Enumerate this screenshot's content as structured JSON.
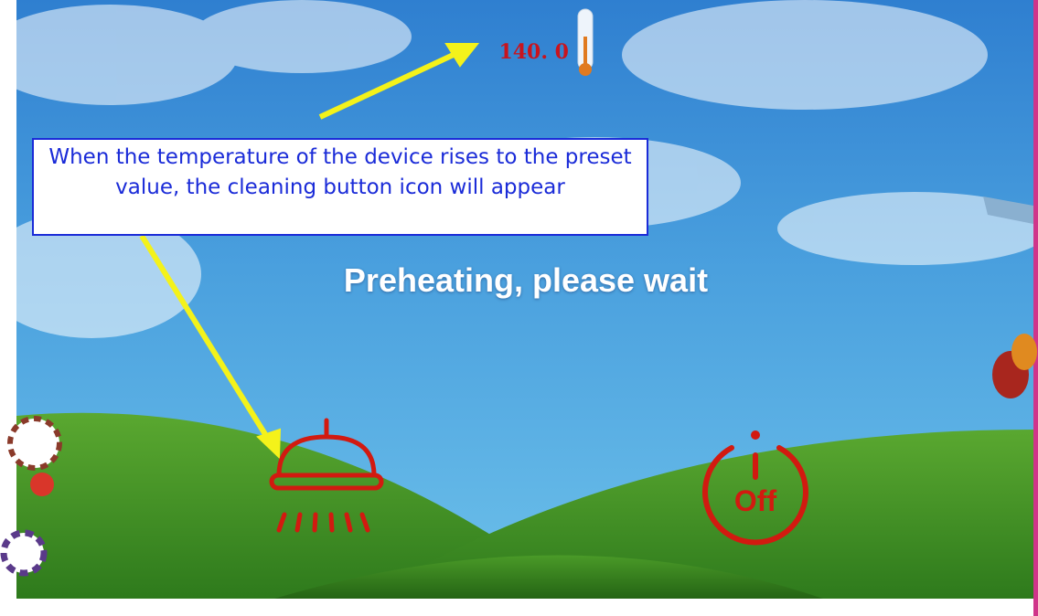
{
  "screen": {
    "temperature": "140. 0",
    "status": "Preheating, please wait",
    "power_button": "Off"
  },
  "annotation": {
    "text": "When the temperature of the device rises to the preset value, the cleaning button icon will appear"
  }
}
